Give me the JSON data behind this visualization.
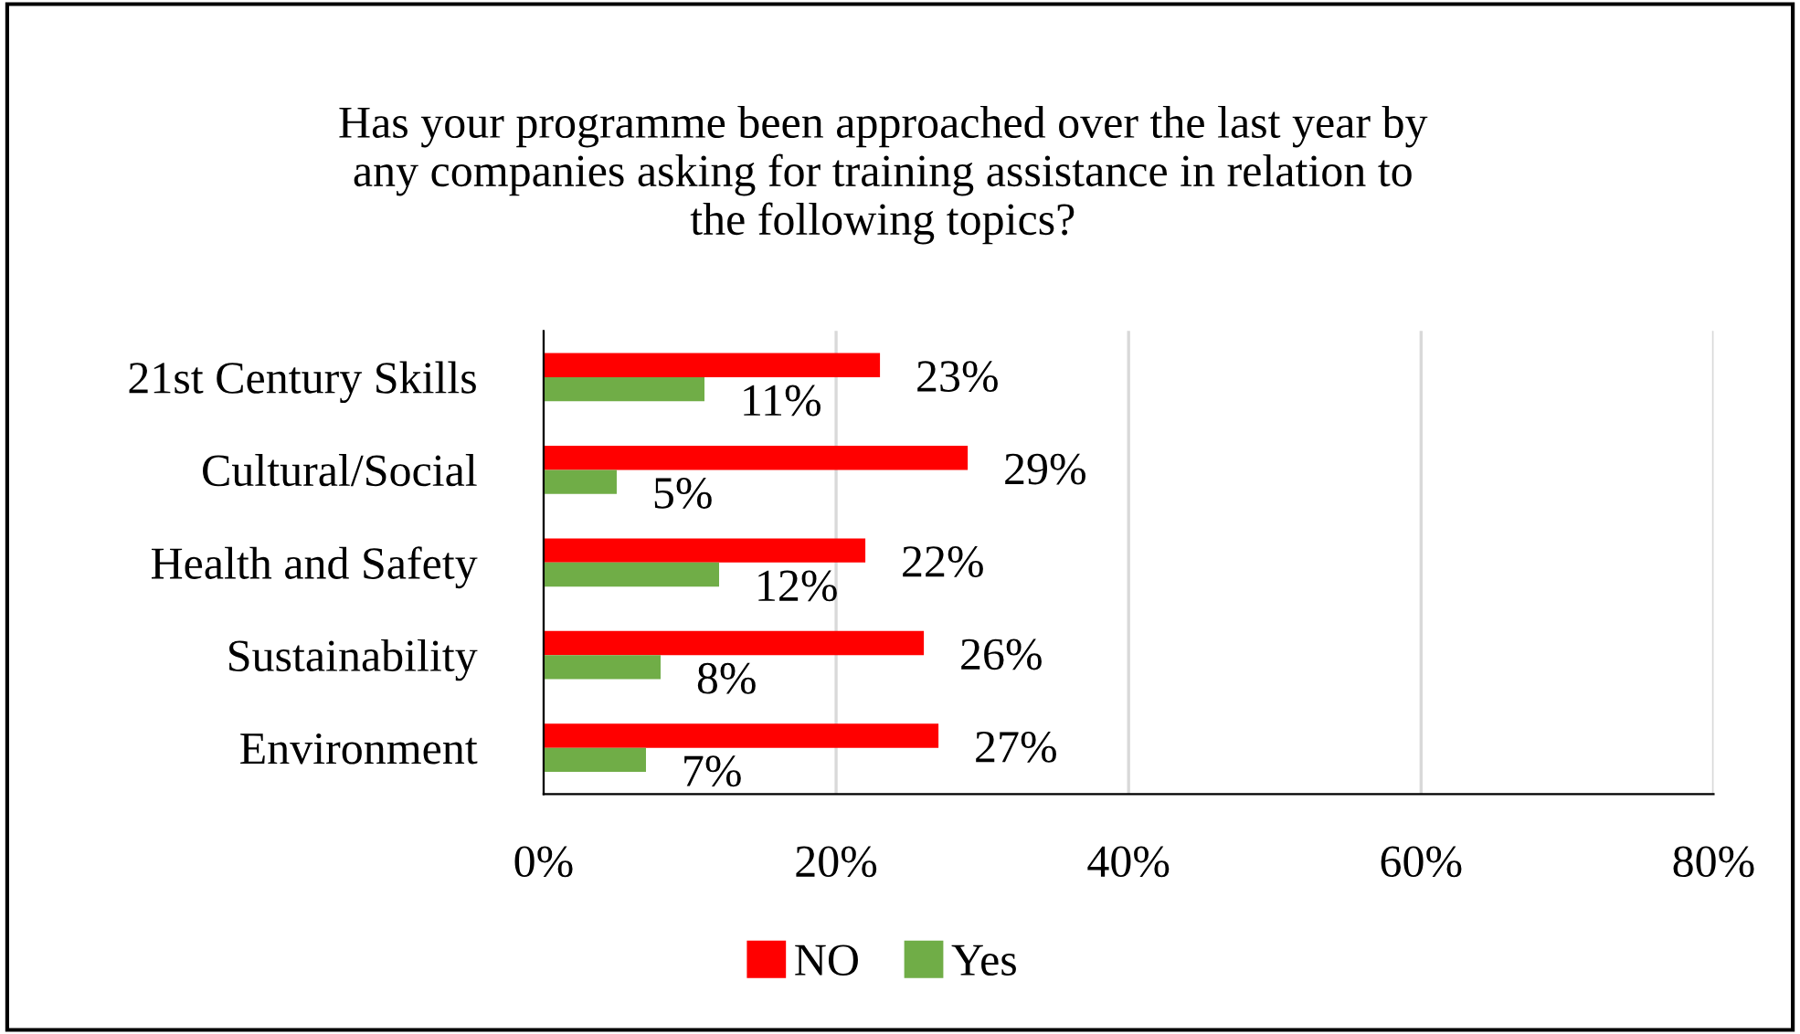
{
  "chart_data": {
    "type": "bar",
    "orientation": "horizontal",
    "title": "Has your programme been approached over the last year by\nany companies asking for training assistance in relation to\nthe following topics?",
    "categories": [
      "21st Century Skills",
      "Cultural/Social",
      "Health and Safety",
      "Sustainability",
      "Environment"
    ],
    "series": [
      {
        "name": "NO",
        "color": "#ff0000",
        "values": [
          23,
          29,
          22,
          26,
          27
        ],
        "value_labels": [
          "23%",
          "29%",
          "22%",
          "26%",
          "27%"
        ]
      },
      {
        "name": "Yes",
        "color": "#70ad47",
        "values": [
          11,
          5,
          12,
          8,
          7
        ],
        "value_labels": [
          "11%",
          "5%",
          "12%",
          "8%",
          "7%"
        ]
      }
    ],
    "xlim": [
      0,
      80
    ],
    "xticks": [
      {
        "value": 0,
        "label": "0%"
      },
      {
        "value": 20,
        "label": "20%"
      },
      {
        "value": 40,
        "label": "40%"
      },
      {
        "value": 60,
        "label": "60%"
      },
      {
        "value": 80,
        "label": "80%"
      }
    ],
    "grid": "x",
    "legend": "bottom"
  }
}
